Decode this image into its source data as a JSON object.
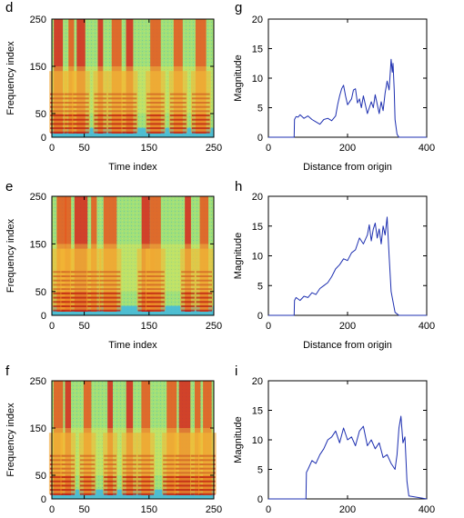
{
  "chart_data": [
    {
      "panel": "d",
      "type": "heatmap",
      "xlabel": "Time index",
      "ylabel": "Frequency index",
      "xticks": [
        "0",
        "50",
        "150",
        "250"
      ],
      "yticks": [
        "0",
        "50",
        "150",
        "250"
      ],
      "xlim": [
        0,
        250
      ],
      "ylim": [
        0,
        250
      ],
      "voiced_columns": [
        10,
        30,
        45,
        75,
        100,
        120,
        160,
        195,
        230
      ],
      "colormap": [
        "#3fb7e0",
        "#9fe07a",
        "#f5e64a",
        "#f2a22a",
        "#d8261c"
      ]
    },
    {
      "panel": "e",
      "type": "heatmap",
      "xlabel": "Time index",
      "ylabel": "Frequency index",
      "xticks": [
        "0",
        "50",
        "150",
        "250"
      ],
      "yticks": [
        "0",
        "50",
        "150",
        "250"
      ],
      "xlim": [
        0,
        250
      ],
      "ylim": [
        0,
        250
      ],
      "voiced_columns": [
        15,
        25,
        45,
        65,
        90,
        145,
        160,
        210,
        235
      ],
      "colormap": [
        "#3fb7e0",
        "#9fe07a",
        "#f5e64a",
        "#f2a22a",
        "#d8261c"
      ]
    },
    {
      "panel": "f",
      "type": "heatmap",
      "xlabel": "",
      "ylabel": "Frequency index",
      "xticks": [
        "0",
        "50",
        "150",
        "250"
      ],
      "yticks": [
        "0",
        "50",
        "150",
        "250"
      ],
      "xlim": [
        0,
        250
      ],
      "ylim": [
        0,
        250
      ],
      "voiced_columns": [
        10,
        25,
        55,
        90,
        120,
        145,
        185,
        205,
        225,
        240
      ],
      "colormap": [
        "#3fb7e0",
        "#9fe07a",
        "#f5e64a",
        "#f2a22a",
        "#d8261c"
      ]
    },
    {
      "panel": "g",
      "type": "line",
      "xlabel": "Distance from origin",
      "ylabel": "Magnitude",
      "xlim": [
        0,
        400
      ],
      "ylim": [
        0,
        20
      ],
      "xticks": [
        "0",
        "200",
        "400"
      ],
      "yticks": [
        "0",
        "5",
        "10",
        "15",
        "20"
      ],
      "color": "#1d2fb0",
      "x": [
        0,
        65,
        66,
        70,
        75,
        80,
        90,
        100,
        110,
        120,
        130,
        140,
        150,
        160,
        170,
        175,
        180,
        185,
        190,
        195,
        200,
        210,
        215,
        220,
        225,
        230,
        235,
        240,
        250,
        260,
        265,
        270,
        280,
        285,
        290,
        295,
        300,
        305,
        310,
        313,
        315,
        318,
        320,
        325,
        330,
        400
      ],
      "y": [
        0,
        0,
        3.0,
        3.5,
        3.4,
        3.8,
        3.2,
        3.6,
        3.0,
        2.6,
        2.2,
        3.0,
        3.2,
        2.8,
        3.6,
        5.5,
        7.0,
        8.2,
        8.8,
        7.0,
        5.5,
        6.5,
        8.0,
        8.2,
        5.8,
        6.5,
        5.0,
        7.0,
        4.0,
        6.0,
        5.0,
        7.2,
        4.0,
        6.0,
        4.5,
        7.5,
        9.5,
        8.0,
        13.2,
        11.0,
        12.5,
        8.0,
        3.0,
        0.5,
        0,
        0
      ]
    },
    {
      "panel": "h",
      "type": "line",
      "xlabel": "Distance from origin",
      "ylabel": "Magnitude",
      "xlim": [
        0,
        400
      ],
      "ylim": [
        0,
        20
      ],
      "xticks": [
        "0",
        "200",
        "400"
      ],
      "yticks": [
        "0",
        "5",
        "10",
        "15",
        "20"
      ],
      "color": "#1d2fb0",
      "x": [
        0,
        65,
        66,
        70,
        80,
        90,
        100,
        110,
        120,
        130,
        140,
        150,
        160,
        170,
        180,
        190,
        200,
        210,
        220,
        230,
        240,
        250,
        255,
        260,
        265,
        270,
        275,
        280,
        285,
        290,
        295,
        300,
        305,
        310,
        320,
        330,
        400
      ],
      "y": [
        0,
        0,
        2.5,
        3.0,
        2.5,
        3.2,
        3.0,
        3.8,
        3.5,
        4.5,
        5.0,
        5.5,
        6.5,
        7.8,
        8.5,
        9.5,
        9.2,
        10.5,
        11.0,
        13.0,
        12.0,
        13.5,
        15.2,
        12.5,
        14.5,
        15.5,
        13.0,
        14.5,
        12.0,
        15.0,
        13.5,
        16.5,
        10.0,
        4.0,
        0.5,
        0,
        0
      ]
    },
    {
      "panel": "i",
      "type": "line",
      "xlabel": "",
      "ylabel": "Magnitude",
      "xlim": [
        0,
        400
      ],
      "ylim": [
        0,
        20
      ],
      "xticks": [
        "0",
        "200",
        "400"
      ],
      "yticks": [
        "0",
        "5",
        "10",
        "15",
        "20"
      ],
      "color": "#1d2fb0",
      "x": [
        0,
        95,
        96,
        100,
        110,
        120,
        130,
        140,
        150,
        160,
        170,
        180,
        190,
        200,
        210,
        220,
        230,
        240,
        250,
        260,
        270,
        280,
        290,
        300,
        310,
        320,
        325,
        330,
        335,
        340,
        345,
        350,
        355,
        400
      ],
      "y": [
        0,
        0,
        4.5,
        5.0,
        6.5,
        6.0,
        7.5,
        8.5,
        10.0,
        10.5,
        11.5,
        9.5,
        12.0,
        10.0,
        10.5,
        9.0,
        11.5,
        12.3,
        9.0,
        10.0,
        8.5,
        9.5,
        7.0,
        7.5,
        6.0,
        5.0,
        7.5,
        12.0,
        14.0,
        9.5,
        10.5,
        3.0,
        0.5,
        0
      ]
    }
  ]
}
